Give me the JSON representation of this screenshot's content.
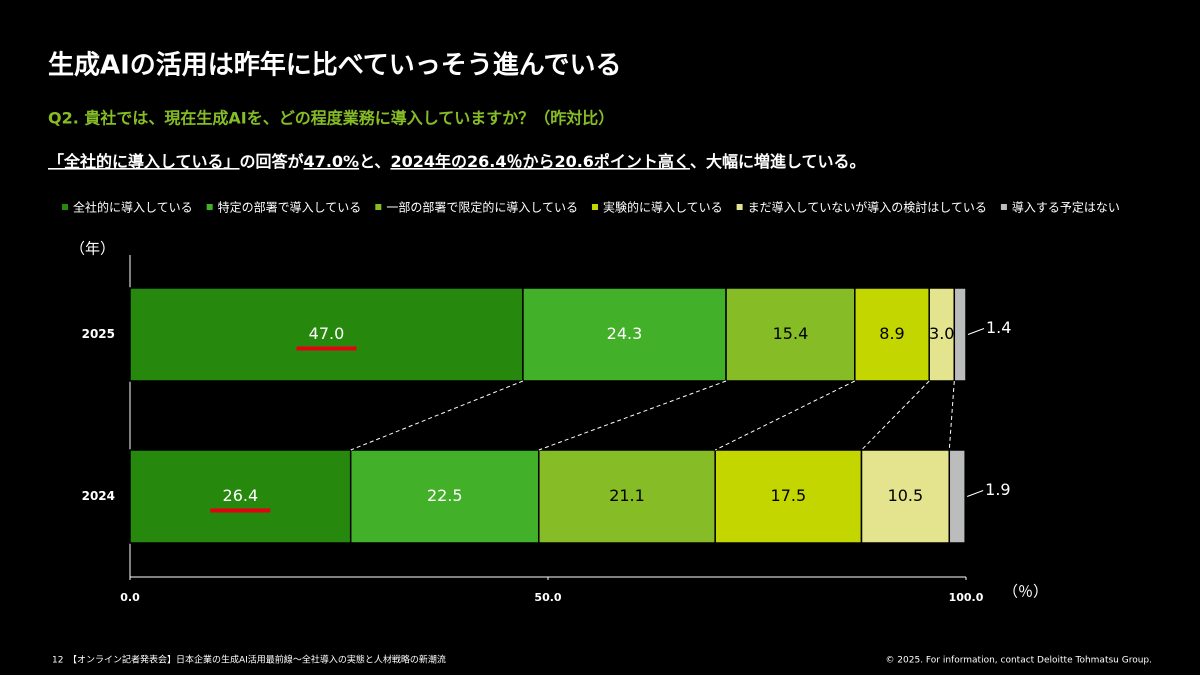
{
  "title": "生成AIの活用は昨年に比べていっそう進んでいる",
  "question": "Q2. 貴社では、現在生成AIを、どの程度業務に導入していますか？（昨対比）",
  "subtitle_parts": [
    {
      "text": "「全社的に導入している」",
      "underline": true
    },
    {
      "text": "の回答が",
      "underline": false
    },
    {
      "text": "47.0%",
      "underline": true
    },
    {
      "text": "と、",
      "underline": false
    },
    {
      "text": "2024年の26.4％から20.6ポイント高く",
      "underline": true
    },
    {
      "text": "、大幅に増進している。",
      "underline": false
    }
  ],
  "chart_data": {
    "type": "stacked_bar_horizontal",
    "categories": [
      "2025",
      "2024"
    ],
    "y_label": "（年）",
    "x_label": "（％）",
    "xlim": [
      0,
      100
    ],
    "xticks": [
      {
        "value": 0,
        "label": "0.0"
      },
      {
        "value": 50,
        "label": "50.0"
      },
      {
        "value": 100,
        "label": "100.0"
      }
    ],
    "series": [
      {
        "name": "全社的に導入している",
        "color": "#26890d",
        "label_color": "#ffffff",
        "values": [
          47.0,
          26.4
        ],
        "value_labels": [
          "47.0",
          "26.4"
        ]
      },
      {
        "name": "特定の部署で導入している",
        "color": "#43b02a",
        "label_color": "#ffffff",
        "values": [
          24.3,
          22.5
        ],
        "value_labels": [
          "24.3",
          "22.5"
        ]
      },
      {
        "name": "一部の部署で限定的に導入している",
        "color": "#86bc25",
        "label_color": "#000000",
        "values": [
          15.4,
          21.1
        ],
        "value_labels": [
          "15.4",
          "21.1"
        ]
      },
      {
        "name": "実験的に導入している",
        "color": "#c4d600",
        "label_color": "#000000",
        "values": [
          8.9,
          17.5
        ],
        "value_labels": [
          "8.9",
          "17.5"
        ]
      },
      {
        "name": "まだ導入していないが導入の検討はしている",
        "color": "#e3e48d",
        "label_color": "#000000",
        "values": [
          3.0,
          10.5
        ],
        "value_labels": [
          "3.0",
          "10.5"
        ]
      },
      {
        "name": "導入する予定はない",
        "color": "#bbbcbc",
        "label_color": "#000000",
        "values": [
          1.4,
          1.9
        ],
        "value_labels": [
          "1.4",
          "1.9"
        ]
      }
    ]
  },
  "footer": {
    "page": "12",
    "text": "【オンライン記者発表会】日本企業の生成AI活用最前線～全社導入の実態と人材戦略の新潮流",
    "copyright": "© 2025. For information, contact Deloitte Tohmatsu Group."
  }
}
